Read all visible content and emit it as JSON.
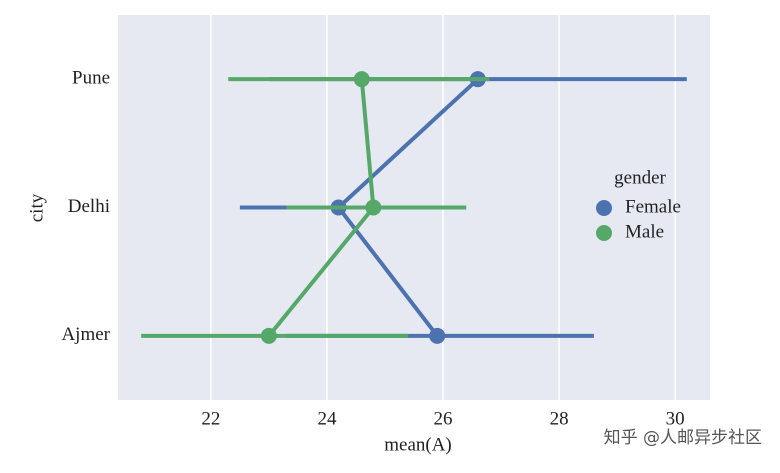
{
  "chart_data": {
    "type": "pointplot",
    "xlabel": "mean(A)",
    "ylabel": "city",
    "categories": [
      "Pune",
      "Delhi",
      "Ajmer"
    ],
    "series": [
      {
        "name": "Female",
        "color": "#4c72b0",
        "values": [
          26.6,
          24.2,
          25.9
        ],
        "ci": [
          [
            23.0,
            30.2
          ],
          [
            22.5,
            25.9
          ],
          [
            23.3,
            28.6
          ]
        ]
      },
      {
        "name": "Male",
        "color": "#55a868",
        "values": [
          24.6,
          24.8,
          23.0
        ],
        "ci": [
          [
            22.3,
            26.8
          ],
          [
            23.3,
            26.4
          ],
          [
            20.8,
            25.4
          ]
        ]
      }
    ],
    "xlim": [
      20.4,
      30.6
    ],
    "xticks": [
      22,
      24,
      26,
      28,
      30
    ],
    "grid": true,
    "legend_title": "gender",
    "legend_position": "right",
    "watermark": "知乎 @人邮异步社区"
  }
}
